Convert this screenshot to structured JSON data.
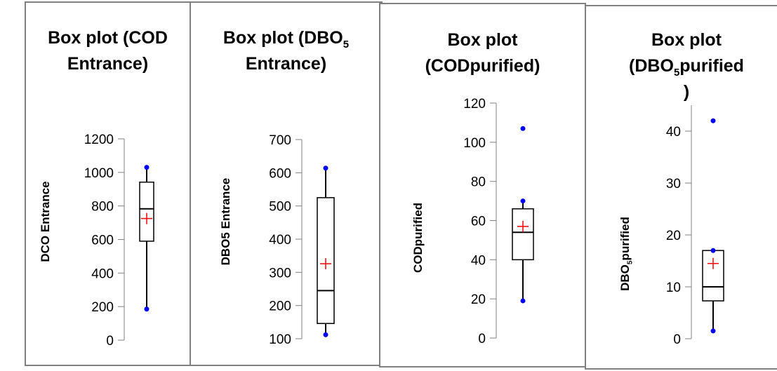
{
  "chart_data": [
    {
      "type": "box",
      "title": "Box plot (COD Entrance)",
      "title_lines": [
        "Box plot (COD",
        "Entrance)"
      ],
      "ylabel": "DCO Entrance",
      "ylim": [
        0,
        1200
      ],
      "yticks": [
        0,
        200,
        400,
        600,
        800,
        1000,
        1200
      ],
      "box": {
        "min": 185,
        "q1": 590,
        "median": 783,
        "q3": 942,
        "max": 1030,
        "mean": 725
      },
      "outliers": [],
      "colors": {
        "mean": "#ff0000",
        "whisker_point": "#0000ff",
        "box": "#000000"
      }
    },
    {
      "type": "box",
      "title": "Box plot (DBO5 Entrance)",
      "title_lines": [
        "Box plot (DBO|5",
        "Entrance)"
      ],
      "ylabel": "DBO5 Entrance",
      "ylim": [
        100,
        700
      ],
      "yticks": [
        100,
        200,
        300,
        400,
        500,
        600,
        700
      ],
      "box": {
        "min": 112,
        "q1": 146,
        "median": 245,
        "q3": 525,
        "max": 614,
        "mean": 326
      },
      "outliers": [],
      "colors": {
        "mean": "#ff0000",
        "whisker_point": "#0000ff",
        "box": "#000000"
      }
    },
    {
      "type": "box",
      "title": "Box plot (CODpurified)",
      "title_lines": [
        "Box plot",
        "(CODpurified)"
      ],
      "ylabel": "CODpurified",
      "ylim": [
        0,
        120
      ],
      "yticks": [
        0,
        20,
        40,
        60,
        80,
        100,
        120
      ],
      "box": {
        "min": 19,
        "q1": 40,
        "median": 54,
        "q3": 66,
        "max": 70,
        "mean": 57
      },
      "outliers": [
        107
      ],
      "colors": {
        "mean": "#ff0000",
        "whisker_point": "#0000ff",
        "box": "#000000"
      }
    },
    {
      "type": "box",
      "title": "Box plot (DBO5purified)",
      "title_lines": [
        "Box plot",
        "(DBO|5|purified",
        ")"
      ],
      "ylabel": "DBO5purified",
      "ylabel_parts": [
        "DBO",
        "5",
        "purified"
      ],
      "ylim": [
        0,
        45
      ],
      "yticks": [
        0,
        10,
        20,
        30,
        40
      ],
      "box": {
        "min": 1.5,
        "q1": 7.3,
        "median": 10,
        "q3": 17,
        "max": 17,
        "mean": 14.5
      },
      "outliers": [
        42
      ],
      "colors": {
        "mean": "#ff0000",
        "whisker_point": "#0000ff",
        "box": "#000000"
      }
    }
  ]
}
